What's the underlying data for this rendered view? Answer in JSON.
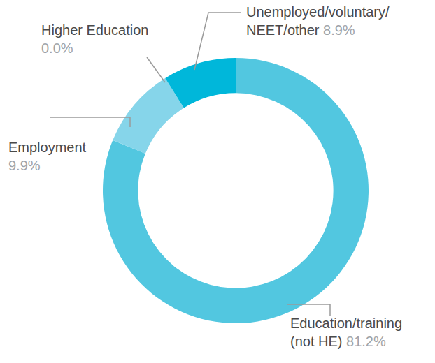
{
  "chart_data": {
    "type": "donut",
    "categories": [
      "Education/training (not HE)",
      "Employment",
      "Higher Education",
      "Unemployed/voluntary/NEET/other"
    ],
    "values": [
      81.2,
      9.9,
      0.0,
      8.9
    ],
    "value_labels": [
      "81.2%",
      "9.9%",
      "0.0%",
      "8.9%"
    ],
    "colors": [
      "#52c7e0",
      "#86d5ea",
      "#3fc2df",
      "#00b7da"
    ],
    "data_labels": true
  }
}
